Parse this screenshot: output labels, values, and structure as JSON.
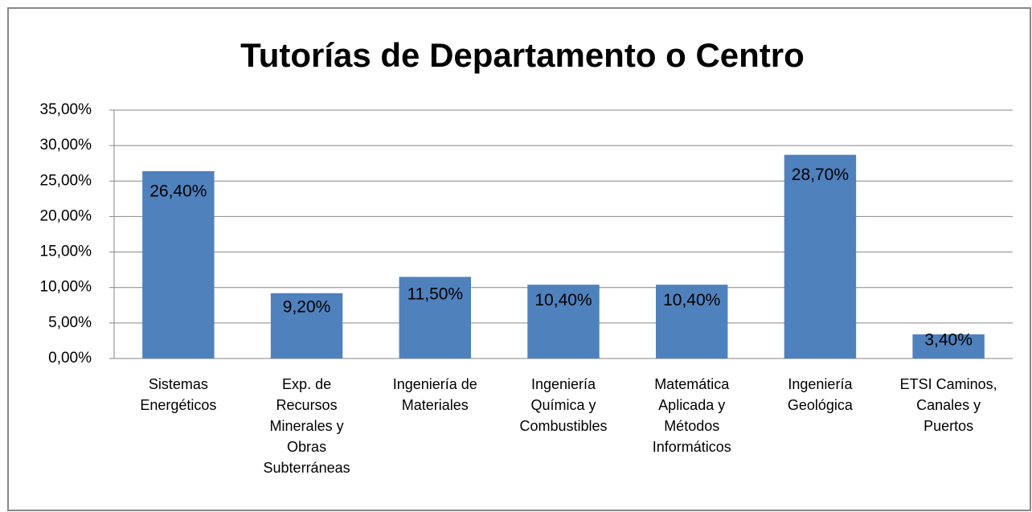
{
  "chart_data": {
    "type": "bar",
    "title": "Tutorías de Departamento o Centro",
    "categories": [
      "Sistemas\nEnergéticos",
      "Exp. de\nRecursos\nMinerales y\nObras\nSubterráneas",
      "Ingeniería de\nMateriales",
      "Ingeniería\nQuímica y\nCombustibles",
      "Matemática\nAplicada y\nMétodos\nInformáticos",
      "Ingeniería\nGeológica",
      "ETSI Caminos,\nCanales y\nPuertos"
    ],
    "values": [
      26.4,
      9.2,
      11.5,
      10.4,
      10.4,
      28.7,
      3.4
    ],
    "value_labels": [
      "26,40%",
      "9,20%",
      "11,50%",
      "10,40%",
      "10,40%",
      "28,70%",
      "3,40%"
    ],
    "color": "#4f81bd",
    "ylim": [
      0,
      35
    ],
    "yticks": [
      {
        "value": 0,
        "label": "0,00%"
      },
      {
        "value": 5,
        "label": "5,00%"
      },
      {
        "value": 10,
        "label": "10,00%"
      },
      {
        "value": 15,
        "label": "15,00%"
      },
      {
        "value": 20,
        "label": "20,00%"
      },
      {
        "value": 25,
        "label": "25,00%"
      },
      {
        "value": 30,
        "label": "30,00%"
      },
      {
        "value": 35,
        "label": "35,00%"
      }
    ],
    "grid": true
  }
}
